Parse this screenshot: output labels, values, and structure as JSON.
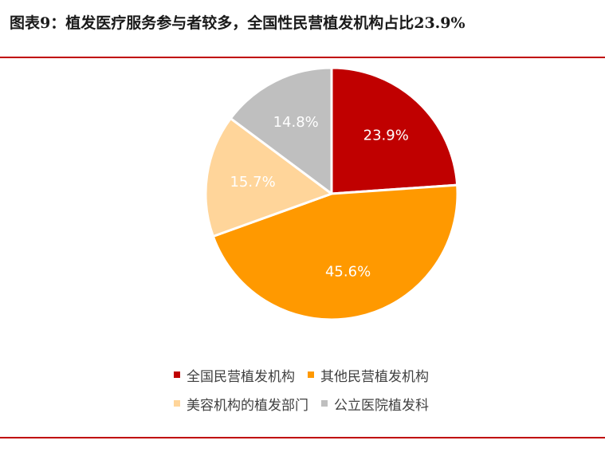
{
  "title": "图表9：植发医疗服务参与者较多，全国性民营植发机构占比23.9%",
  "chart_data": {
    "type": "pie",
    "categories": [
      "全国民营植发机构",
      "其他民营植发机构",
      "美容机构的植发部门",
      "公立医院植发科"
    ],
    "values": [
      23.9,
      45.6,
      15.7,
      14.8
    ],
    "labels": [
      "23.9%",
      "45.6%",
      "15.7%",
      "14.8%"
    ],
    "colors": [
      "#c00000",
      "#ff9900",
      "#ffd59a",
      "#bfbfbf"
    ],
    "label_colors": [
      "#ffffff",
      "#ffffff",
      "#ffffff",
      "#ffffff"
    ],
    "legend_position": "bottom",
    "start": "12-o'clock",
    "direction": "clockwise"
  }
}
